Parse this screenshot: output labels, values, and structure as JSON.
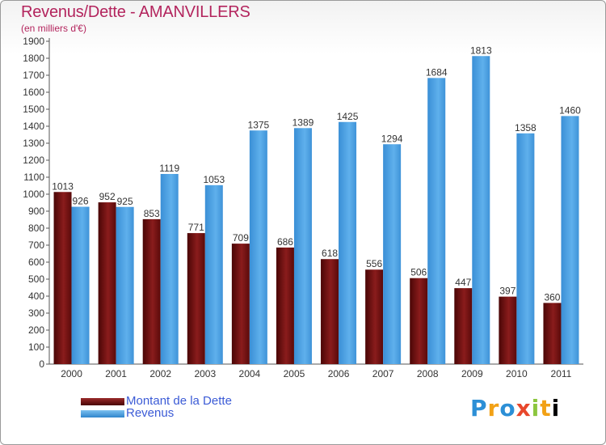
{
  "header": {
    "title": "Revenus/Dette - AMANVILLERS",
    "subtitle": "(en milliers d'€)"
  },
  "legend": {
    "debt_label": "Montant de la Dette",
    "revenue_label": "Revenus"
  },
  "logo_text": "Proxiti",
  "colors": {
    "debt": "#6b0d0d",
    "revenue": "#4aa0e2",
    "title": "#b3245d",
    "legend_text": "#3b5bd6"
  },
  "chart_data": {
    "type": "bar",
    "title": "Revenus/Dette - AMANVILLERS",
    "ylabel": "(en milliers d'€)",
    "categories": [
      "2000",
      "2001",
      "2002",
      "2003",
      "2004",
      "2005",
      "2006",
      "2007",
      "2008",
      "2009",
      "2010",
      "2011"
    ],
    "series": [
      {
        "name": "Montant de la Dette",
        "values": [
          1013,
          952,
          853,
          771,
          709,
          686,
          618,
          556,
          506,
          447,
          397,
          360
        ]
      },
      {
        "name": "Revenus",
        "values": [
          926,
          925,
          1119,
          1053,
          1375,
          1389,
          1425,
          1294,
          1684,
          1813,
          1358,
          1460
        ]
      }
    ],
    "ylim": [
      0,
      1900
    ],
    "ytick_step": 100,
    "grid": false,
    "legend_position": "bottom-left"
  }
}
